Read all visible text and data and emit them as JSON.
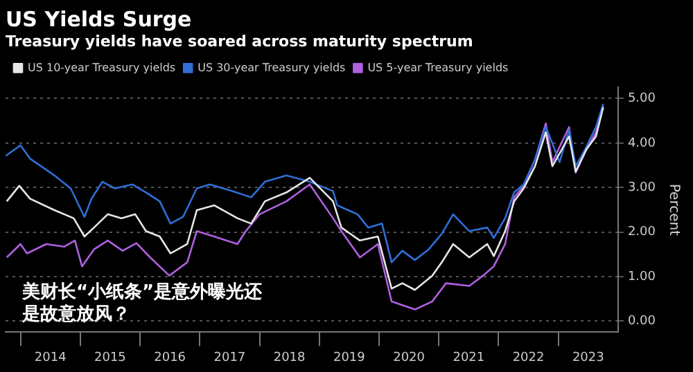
{
  "chart_data": {
    "type": "line",
    "title": "US Yields Surge",
    "subtitle": "Treasury yields have soared across maturity spectrum",
    "ylabel": "Percent",
    "annotations": [
      "美财长“小纸条”是意外曝光还是故意放风？"
    ],
    "xlim": [
      2013.75,
      2024.0
    ],
    "xticks": [
      {
        "value": 2014,
        "label": null
      },
      {
        "value": 2014.5,
        "label": "2014"
      },
      {
        "value": 2015,
        "label": null
      },
      {
        "value": 2015.5,
        "label": "2015"
      },
      {
        "value": 2016,
        "label": null
      },
      {
        "value": 2016.5,
        "label": "2016"
      },
      {
        "value": 2017,
        "label": null
      },
      {
        "value": 2017.5,
        "label": "2017"
      },
      {
        "value": 2018,
        "label": null
      },
      {
        "value": 2018.5,
        "label": "2018"
      },
      {
        "value": 2019,
        "label": null
      },
      {
        "value": 2019.5,
        "label": "2019"
      },
      {
        "value": 2020,
        "label": null
      },
      {
        "value": 2020.5,
        "label": "2020"
      },
      {
        "value": 2021,
        "label": null
      },
      {
        "value": 2021.5,
        "label": "2021"
      },
      {
        "value": 2022,
        "label": null
      },
      {
        "value": 2022.5,
        "label": "2022"
      },
      {
        "value": 2023,
        "label": null
      },
      {
        "value": 2023.5,
        "label": "2023"
      }
    ],
    "ylim": [
      -0.25,
      5.25
    ],
    "yticks": [
      {
        "value": 0,
        "label": "0.00"
      },
      {
        "value": 1,
        "label": "1.00"
      },
      {
        "value": 2,
        "label": "2.00"
      },
      {
        "value": 3,
        "label": "3.00"
      },
      {
        "value": 4,
        "label": "4.00"
      },
      {
        "value": 5,
        "label": "5.00"
      }
    ],
    "grid": "y",
    "legend": "top left",
    "marker": "none",
    "line_style": "solid",
    "series": [
      {
        "name": "US 10-year Treasury yields",
        "color": "#e6e6e6",
        "x": [
          2013.77,
          2013.98,
          2014.16,
          2014.57,
          2014.89,
          2015.07,
          2015.23,
          2015.46,
          2015.69,
          2015.92,
          2016.1,
          2016.33,
          2016.51,
          2016.79,
          2016.95,
          2017.24,
          2017.63,
          2017.86,
          2018.09,
          2018.45,
          2018.84,
          2019.23,
          2019.37,
          2019.68,
          2019.98,
          2020.21,
          2020.39,
          2020.6,
          2020.89,
          2021.05,
          2021.24,
          2021.51,
          2021.81,
          2021.92,
          2022.11,
          2022.26,
          2022.42,
          2022.61,
          2022.79,
          2022.9,
          2023.06,
          2023.18,
          2023.29,
          2023.47,
          2023.63,
          2023.75
        ],
        "values": [
          2.69,
          3.04,
          2.75,
          2.49,
          2.31,
          1.9,
          2.1,
          2.4,
          2.31,
          2.4,
          2.02,
          1.9,
          1.52,
          1.73,
          2.49,
          2.6,
          2.31,
          2.19,
          2.69,
          2.89,
          3.22,
          2.69,
          2.1,
          1.81,
          1.9,
          0.73,
          0.85,
          0.7,
          1.02,
          1.32,
          1.73,
          1.43,
          1.73,
          1.46,
          2.02,
          2.69,
          2.98,
          3.48,
          4.24,
          3.48,
          3.86,
          4.15,
          3.36,
          3.86,
          4.15,
          4.8
        ]
      },
      {
        "name": "US 30-year Treasury yields",
        "color": "#2f6fd6",
        "x": [
          2013.75,
          2014.0,
          2014.16,
          2014.57,
          2014.84,
          2015.07,
          2015.19,
          2015.37,
          2015.58,
          2015.87,
          2016.1,
          2016.33,
          2016.51,
          2016.72,
          2016.95,
          2017.17,
          2017.54,
          2017.86,
          2018.09,
          2018.45,
          2018.84,
          2019.23,
          2019.3,
          2019.64,
          2019.82,
          2020.05,
          2020.21,
          2020.39,
          2020.6,
          2020.83,
          2021.05,
          2021.24,
          2021.51,
          2021.81,
          2021.92,
          2022.11,
          2022.26,
          2022.42,
          2022.61,
          2022.79,
          2022.88,
          2023.02,
          2023.18,
          2023.29,
          2023.45,
          2023.63,
          2023.75
        ],
        "values": [
          3.71,
          3.95,
          3.65,
          3.27,
          2.98,
          2.34,
          2.75,
          3.13,
          2.98,
          3.07,
          2.89,
          2.69,
          2.19,
          2.34,
          2.98,
          3.07,
          2.92,
          2.78,
          3.13,
          3.27,
          3.13,
          2.92,
          2.6,
          2.4,
          2.1,
          2.19,
          1.32,
          1.58,
          1.37,
          1.61,
          1.96,
          2.4,
          2.02,
          2.1,
          1.87,
          2.31,
          2.89,
          3.07,
          3.63,
          4.36,
          4.06,
          3.57,
          4.3,
          3.48,
          3.86,
          4.36,
          4.88
        ]
      },
      {
        "name": "US 5-year Treasury yields",
        "color": "#b060e0",
        "x": [
          2013.77,
          2014.0,
          2014.11,
          2014.43,
          2014.73,
          2014.91,
          2015.03,
          2015.23,
          2015.46,
          2015.71,
          2015.94,
          2016.17,
          2016.49,
          2016.79,
          2016.95,
          2017.24,
          2017.63,
          2017.77,
          2018.0,
          2018.45,
          2018.84,
          2019.23,
          2019.37,
          2019.68,
          2019.98,
          2020.21,
          2020.6,
          2020.89,
          2021.12,
          2021.51,
          2021.74,
          2021.92,
          2022.11,
          2022.26,
          2022.42,
          2022.61,
          2022.79,
          2022.9,
          2023.18,
          2023.29,
          2023.47,
          2023.63,
          2023.75
        ],
        "values": [
          1.43,
          1.73,
          1.52,
          1.73,
          1.67,
          1.81,
          1.23,
          1.61,
          1.81,
          1.58,
          1.75,
          1.43,
          1.02,
          1.32,
          2.02,
          1.9,
          1.73,
          2.02,
          2.4,
          2.69,
          3.07,
          2.31,
          2.02,
          1.43,
          1.73,
          0.44,
          0.26,
          0.44,
          0.85,
          0.79,
          1.02,
          1.23,
          1.73,
          2.78,
          3.04,
          3.63,
          4.44,
          3.57,
          4.36,
          3.33,
          3.86,
          4.24,
          4.83
        ]
      }
    ]
  }
}
